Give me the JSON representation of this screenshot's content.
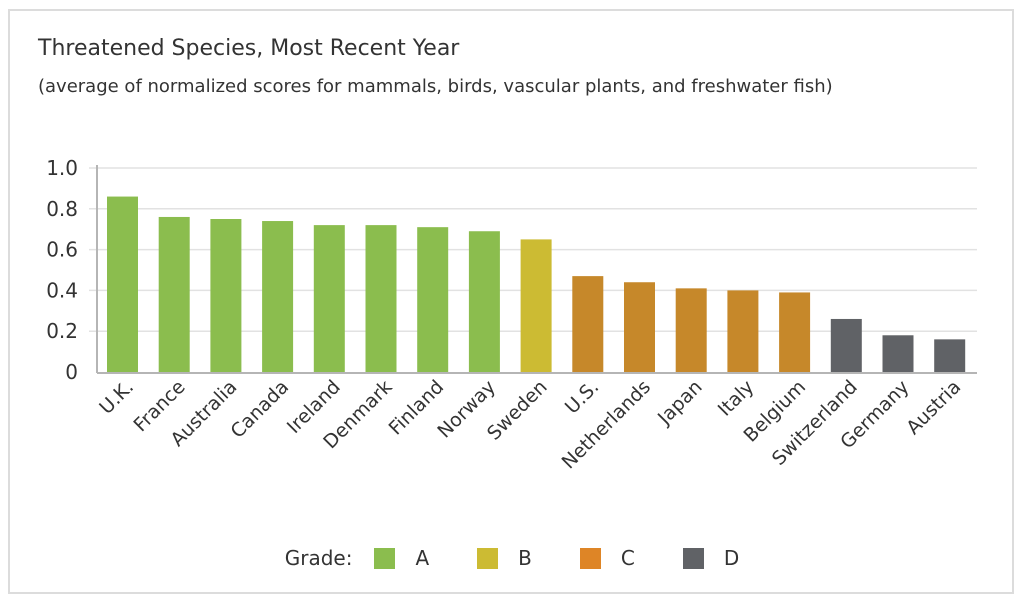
{
  "chart_data": {
    "type": "bar",
    "title": "Threatened Species, Most Recent Year",
    "subtitle": "(average of normalized scores for mammals, birds, vascular plants, and freshwater fish)",
    "xlabel": "",
    "ylabel": "",
    "ylim": [
      0,
      1.0
    ],
    "yticks": [
      0,
      0.2,
      0.4,
      0.6,
      0.8,
      1.0
    ],
    "ytick_labels": [
      "0",
      "0.2",
      "0.4",
      "0.6",
      "0.8",
      "1.0"
    ],
    "grid": true,
    "categories": [
      "U.K.",
      "France",
      "Australia",
      "Canada",
      "Ireland",
      "Denmark",
      "Finland",
      "Norway",
      "Sweden",
      "U.S.",
      "Netherlands",
      "Japan",
      "Italy",
      "Belgium",
      "Switzerland",
      "Germany",
      "Austria"
    ],
    "values": [
      0.86,
      0.76,
      0.75,
      0.74,
      0.72,
      0.72,
      0.71,
      0.69,
      0.65,
      0.47,
      0.44,
      0.41,
      0.4,
      0.39,
      0.26,
      0.18,
      0.16
    ],
    "grades": [
      "A",
      "A",
      "A",
      "A",
      "A",
      "A",
      "A",
      "A",
      "B",
      "C",
      "C",
      "C",
      "C",
      "C",
      "D",
      "D",
      "D"
    ],
    "legend": {
      "label": "Grade:",
      "placement": "bottom-center",
      "entries": [
        {
          "name": "A",
          "color": "#8bbd4e"
        },
        {
          "name": "B",
          "color": "#ccbb33"
        },
        {
          "name": "C",
          "color": "#de8526"
        },
        {
          "name": "D",
          "color": "#606266"
        }
      ]
    },
    "bar_colors": {
      "A": "#8bbd4e",
      "B": "#ccbb33",
      "C": "#c6882a",
      "D": "#606266"
    }
  }
}
